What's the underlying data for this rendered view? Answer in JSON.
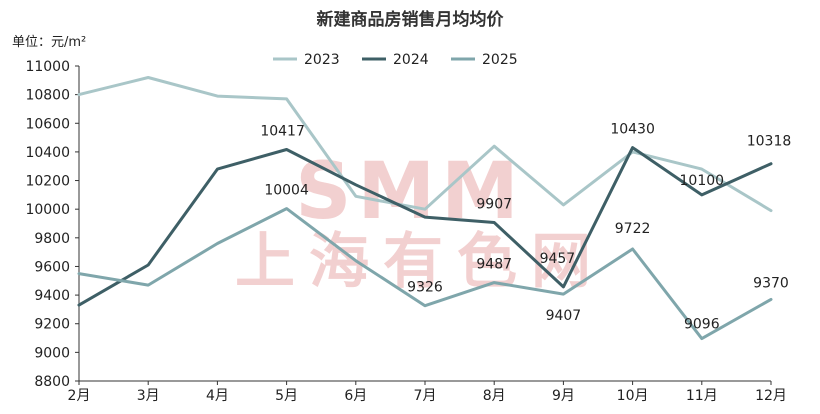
{
  "chart_data": {
    "type": "line",
    "title": "新建商品房销售月均均价",
    "unit_label": "单位：元/m²",
    "watermark": {
      "brand": "SMM",
      "text": "上海有色网"
    },
    "categories": [
      "2月",
      "3月",
      "4月",
      "5月",
      "6月",
      "7月",
      "8月",
      "9月",
      "10月",
      "11月",
      "12月"
    ],
    "ylim": [
      8800,
      11000
    ],
    "yticks": [
      8800,
      9000,
      9200,
      9400,
      9600,
      9800,
      10000,
      10200,
      10400,
      10600,
      10800,
      11000
    ],
    "grid": false,
    "legend_position": "top-center",
    "series": [
      {
        "name": "2023",
        "color": "#a9c6c8",
        "values": [
          10800,
          10920,
          10790,
          10770,
          10090,
          10000,
          10440,
          10030,
          10400,
          10280,
          9990
        ]
      },
      {
        "name": "2024",
        "color": "#3e5f66",
        "values": [
          9330,
          9610,
          10280,
          10417,
          10170,
          9945,
          9907,
          9457,
          10430,
          10100,
          10318
        ]
      },
      {
        "name": "2025",
        "color": "#7fa6ab",
        "values": [
          9550,
          9470,
          9760,
          10004,
          9640,
          9326,
          9487,
          9407,
          9722,
          9096,
          9370
        ]
      }
    ],
    "data_labels": [
      {
        "series": 1,
        "index": 3,
        "text": "10417"
      },
      {
        "series": 1,
        "index": 6,
        "text": "9907"
      },
      {
        "series": 1,
        "index": 7,
        "text": "9457"
      },
      {
        "series": 1,
        "index": 8,
        "text": "10430"
      },
      {
        "series": 1,
        "index": 9,
        "text": "10100"
      },
      {
        "series": 1,
        "index": 10,
        "text": "10318"
      },
      {
        "series": 2,
        "index": 3,
        "text": "10004"
      },
      {
        "series": 2,
        "index": 5,
        "text": "9326"
      },
      {
        "series": 2,
        "index": 6,
        "text": "9487"
      },
      {
        "series": 2,
        "index": 7,
        "text": "9407"
      },
      {
        "series": 2,
        "index": 8,
        "text": "9722"
      },
      {
        "series": 2,
        "index": 9,
        "text": "9096"
      },
      {
        "series": 2,
        "index": 10,
        "text": "9370"
      }
    ]
  }
}
